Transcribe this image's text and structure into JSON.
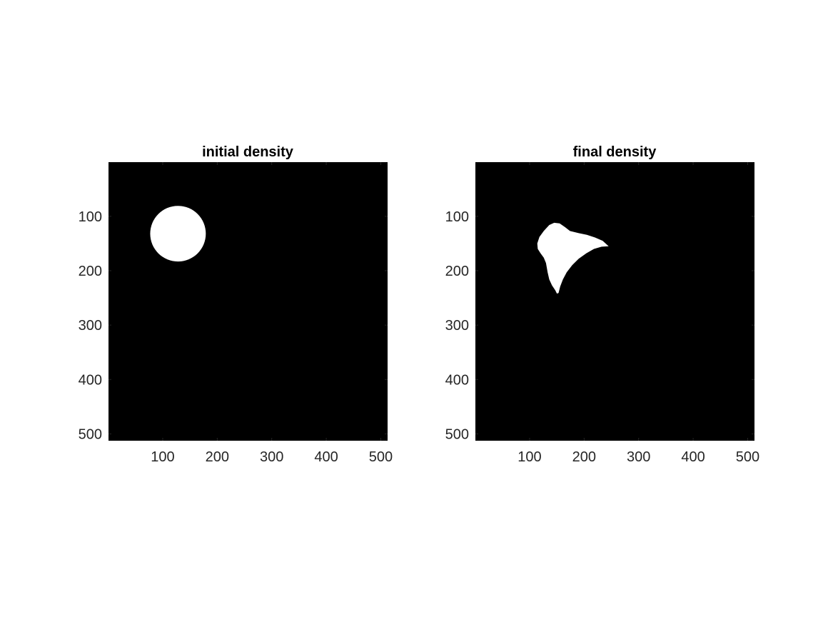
{
  "colors": {
    "background": "#000000",
    "foreground": "#ffffff",
    "tick_text": "#262626",
    "title_text": "#000000",
    "page": "#ffffff"
  },
  "chart_data": [
    {
      "type": "heatmap",
      "title": "initial density",
      "xlabel": "",
      "ylabel": "",
      "xlim": [
        0.5,
        512.5
      ],
      "ylim": [
        0.5,
        512.5
      ],
      "y_reversed": true,
      "x_ticks": [
        100,
        200,
        300,
        400,
        500
      ],
      "y_ticks": [
        100,
        200,
        300,
        400,
        500
      ],
      "colormap": "gray",
      "value_range": [
        0,
        1
      ],
      "grid": false,
      "regions": [
        {
          "value": 1,
          "shape": "circle",
          "center": [
            128,
            132
          ],
          "radius": 51
        }
      ]
    },
    {
      "type": "heatmap",
      "title": "final density",
      "xlabel": "",
      "ylabel": "",
      "xlim": [
        0.5,
        512.5
      ],
      "ylim": [
        0.5,
        512.5
      ],
      "y_reversed": true,
      "x_ticks": [
        100,
        200,
        300,
        400,
        500
      ],
      "y_ticks": [
        100,
        200,
        300,
        400,
        500
      ],
      "colormap": "gray",
      "value_range": [
        0,
        1
      ],
      "grid": false,
      "regions": [
        {
          "value": 1,
          "shape": "polygon",
          "outline": [
            [
              145,
              112
            ],
            [
              155,
              113
            ],
            [
              165,
              120
            ],
            [
              174,
              127
            ],
            [
              190,
              131
            ],
            [
              205,
              134
            ],
            [
              220,
              139
            ],
            [
              234,
              145
            ],
            [
              245,
              155
            ],
            [
              232,
              156
            ],
            [
              218,
              160
            ],
            [
              204,
              168
            ],
            [
              190,
              178
            ],
            [
              178,
              190
            ],
            [
              168,
              203
            ],
            [
              161,
              216
            ],
            [
              156,
              229
            ],
            [
              153,
              241
            ],
            [
              150,
              242
            ],
            [
              147,
              236
            ],
            [
              141,
              227
            ],
            [
              136,
              216
            ],
            [
              133,
              203
            ],
            [
              130,
              186
            ],
            [
              126,
              176
            ],
            [
              120,
              168
            ],
            [
              115,
              160
            ],
            [
              114,
              150
            ],
            [
              118,
              138
            ],
            [
              126,
              127
            ],
            [
              136,
              116
            ]
          ]
        }
      ]
    }
  ]
}
